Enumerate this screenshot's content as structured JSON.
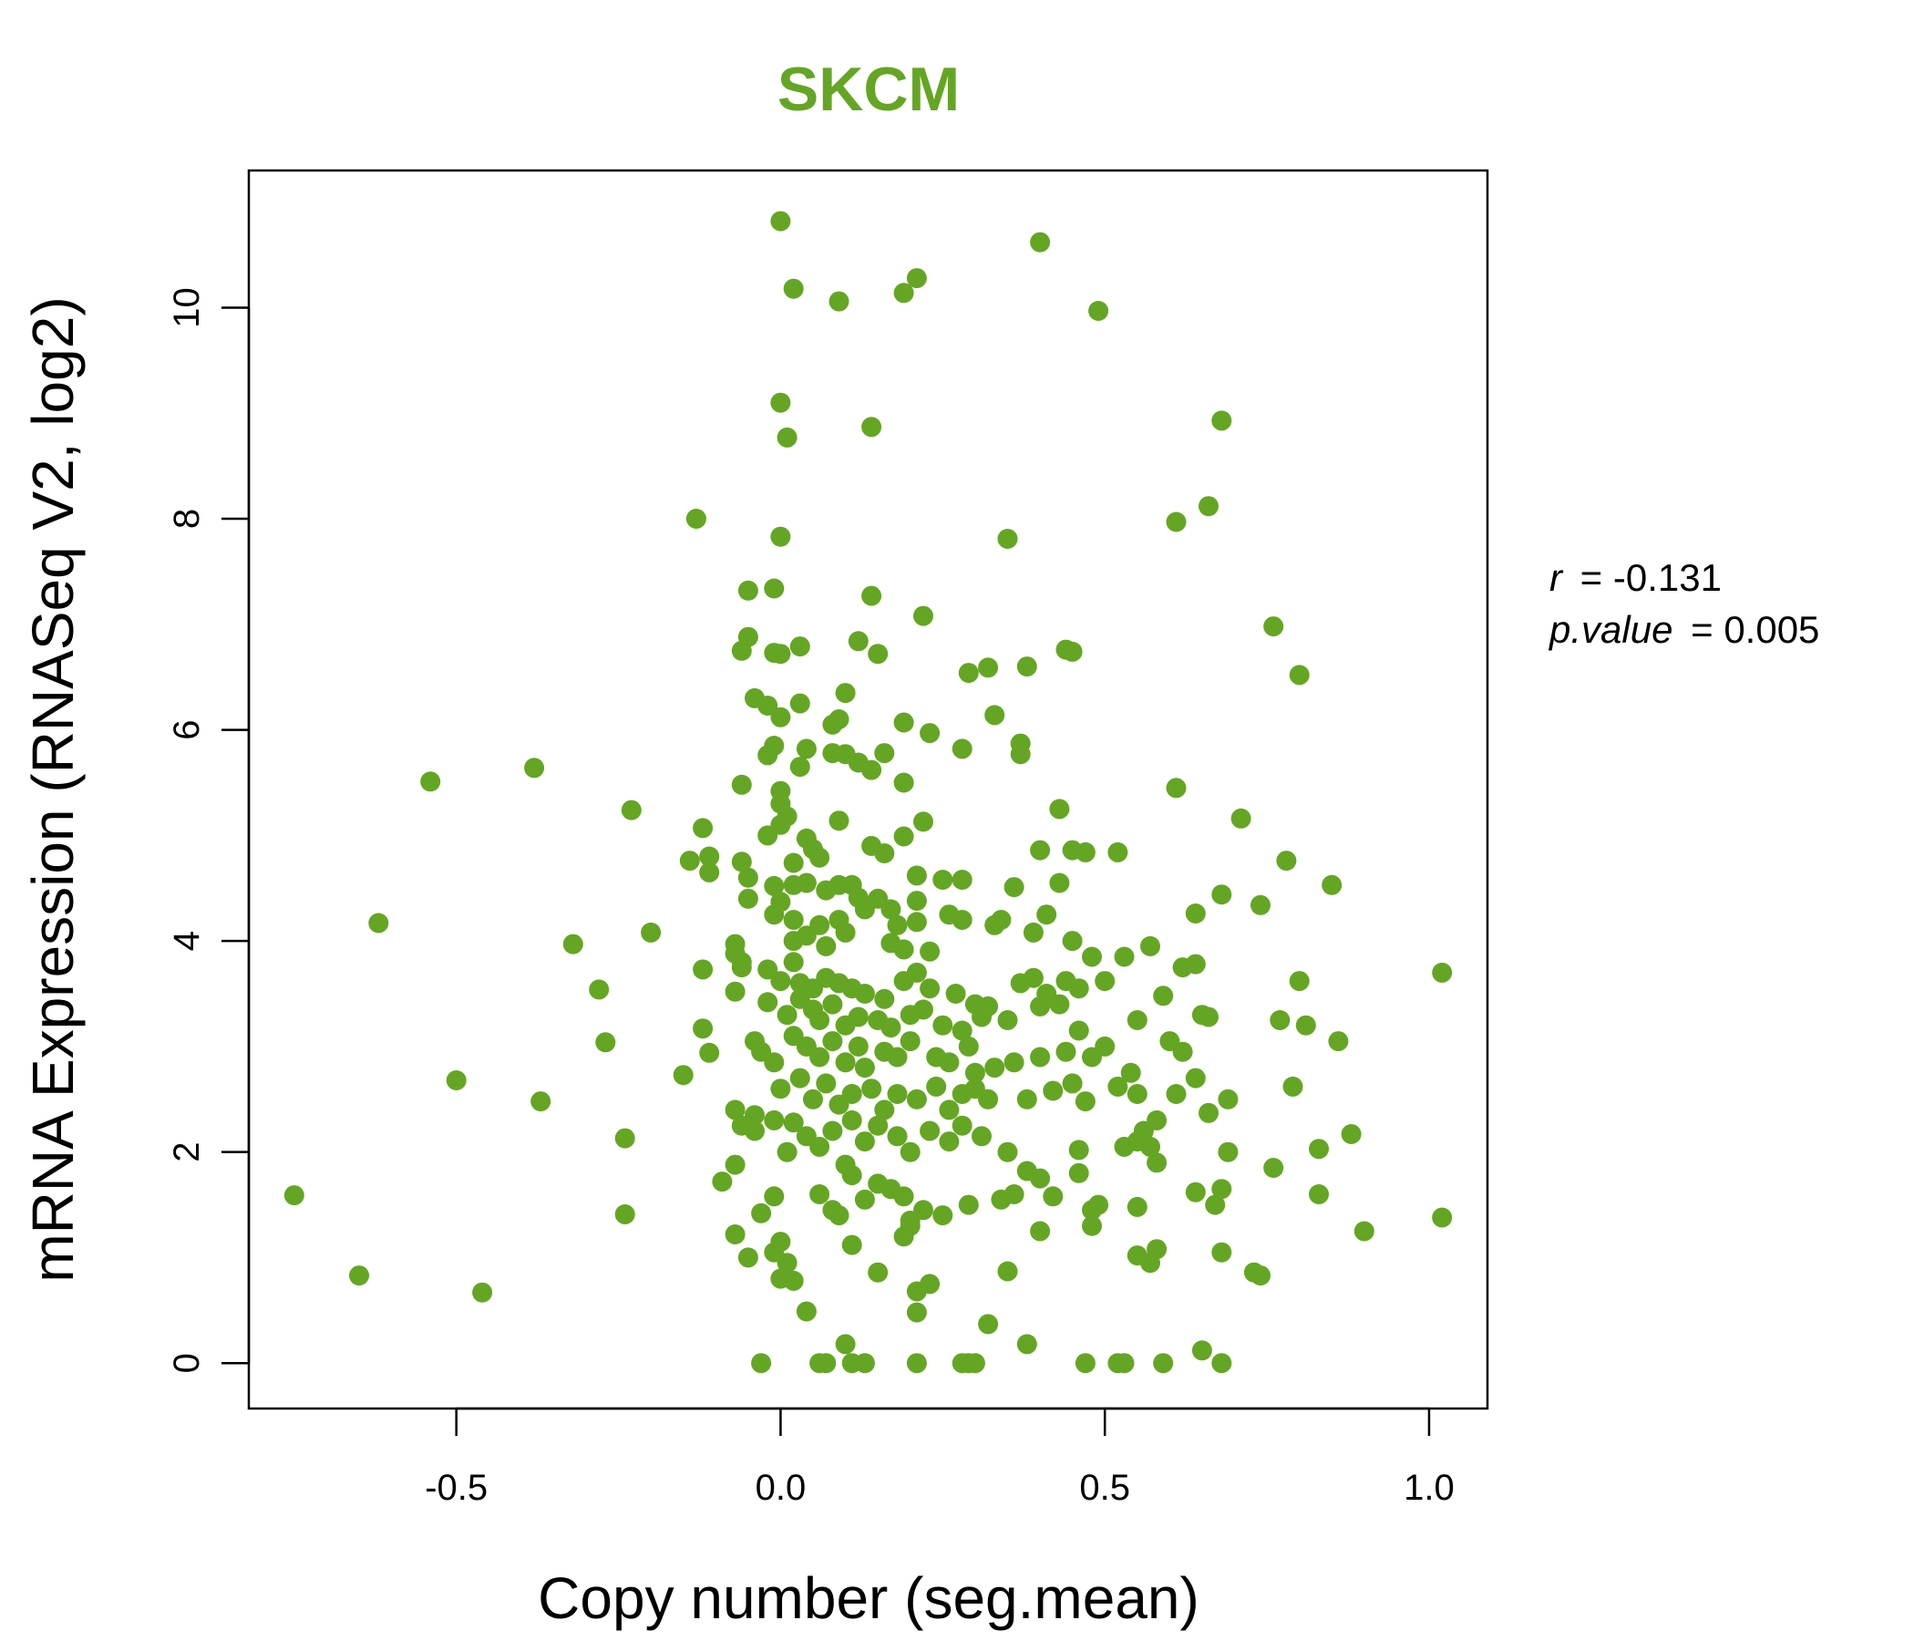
{
  "chart_data": {
    "type": "scatter",
    "title": "SKCM",
    "xlabel": "Copy number (seg.mean)",
    "ylabel": "mRNA Expression (RNASeq V2, log2)",
    "xlim": [
      -0.82,
      1.09
    ],
    "ylim": [
      -0.43,
      11.3
    ],
    "xticks": [
      -0.5,
      0.0,
      0.5,
      1.0
    ],
    "xtick_labels": [
      "-0.5",
      "0.0",
      "0.5",
      "1.0"
    ],
    "yticks": [
      0,
      2,
      4,
      6,
      8,
      10
    ],
    "ytick_labels": [
      "0",
      "2",
      "4",
      "6",
      "8",
      "10"
    ],
    "point_color": "#64a623",
    "grid": false,
    "stats": {
      "r_label": "r",
      "r_value": "-0.131",
      "p_label": "p.value",
      "p_value": "0.005"
    },
    "points": [
      [
        0.0,
        10.82
      ],
      [
        0.4,
        10.62
      ],
      [
        0.02,
        10.18
      ],
      [
        0.21,
        10.28
      ],
      [
        0.19,
        10.14
      ],
      [
        0.09,
        10.06
      ],
      [
        0.49,
        9.97
      ],
      [
        0.0,
        9.1
      ],
      [
        0.01,
        8.77
      ],
      [
        0.14,
        8.87
      ],
      [
        0.68,
        8.93
      ],
      [
        -0.13,
        8.0
      ],
      [
        0.0,
        7.83
      ],
      [
        0.35,
        7.81
      ],
      [
        0.61,
        7.97
      ],
      [
        0.66,
        8.12
      ],
      [
        -0.01,
        7.34
      ],
      [
        -0.05,
        7.32
      ],
      [
        0.14,
        7.27
      ],
      [
        0.22,
        7.08
      ],
      [
        0.76,
        6.98
      ],
      [
        -0.05,
        6.88
      ],
      [
        -0.06,
        6.75
      ],
      [
        -0.01,
        6.73
      ],
      [
        0.0,
        6.72
      ],
      [
        0.03,
        6.79
      ],
      [
        0.12,
        6.84
      ],
      [
        0.15,
        6.72
      ],
      [
        0.29,
        6.54
      ],
      [
        0.32,
        6.59
      ],
      [
        0.38,
        6.6
      ],
      [
        0.44,
        6.76
      ],
      [
        0.45,
        6.74
      ],
      [
        0.8,
        6.52
      ],
      [
        -0.04,
        6.3
      ],
      [
        -0.02,
        6.23
      ],
      [
        0.0,
        6.12
      ],
      [
        0.03,
        6.25
      ],
      [
        0.1,
        6.35
      ],
      [
        0.09,
        6.1
      ],
      [
        0.08,
        6.05
      ],
      [
        0.19,
        6.07
      ],
      [
        0.23,
        5.97
      ],
      [
        0.33,
        6.14
      ],
      [
        0.37,
        5.87
      ],
      [
        0.37,
        5.77
      ],
      [
        0.28,
        5.82
      ],
      [
        -0.01,
        5.85
      ],
      [
        -0.02,
        5.76
      ],
      [
        0.04,
        5.82
      ],
      [
        0.03,
        5.65
      ],
      [
        0.08,
        5.78
      ],
      [
        0.1,
        5.77
      ],
      [
        0.12,
        5.69
      ],
      [
        0.14,
        5.62
      ],
      [
        0.16,
        5.78
      ],
      [
        -0.54,
        5.51
      ],
      [
        -0.38,
        5.64
      ],
      [
        -0.06,
        5.48
      ],
      [
        0.0,
        5.42
      ],
      [
        0.0,
        5.3
      ],
      [
        0.01,
        5.18
      ],
      [
        0.0,
        5.1
      ],
      [
        0.19,
        5.5
      ],
      [
        0.61,
        5.45
      ],
      [
        -0.23,
        5.24
      ],
      [
        -0.12,
        5.07
      ],
      [
        0.09,
        5.14
      ],
      [
        0.22,
        5.13
      ],
      [
        0.43,
        5.25
      ],
      [
        0.71,
        5.16
      ],
      [
        -0.14,
        4.76
      ],
      [
        -0.11,
        4.8
      ],
      [
        -0.11,
        4.65
      ],
      [
        -0.06,
        4.75
      ],
      [
        -0.05,
        4.6
      ],
      [
        -0.02,
        5.0
      ],
      [
        0.04,
        4.97
      ],
      [
        0.05,
        4.87
      ],
      [
        0.02,
        4.74
      ],
      [
        0.06,
        4.79
      ],
      [
        0.14,
        4.9
      ],
      [
        0.16,
        4.83
      ],
      [
        0.19,
        4.99
      ],
      [
        0.4,
        4.86
      ],
      [
        0.45,
        4.86
      ],
      [
        0.47,
        4.84
      ],
      [
        0.52,
        4.84
      ],
      [
        0.78,
        4.76
      ],
      [
        -0.62,
        4.17
      ],
      [
        -0.32,
        3.97
      ],
      [
        -0.2,
        4.08
      ],
      [
        -0.05,
        4.4
      ],
      [
        -0.01,
        4.52
      ],
      [
        0.0,
        4.37
      ],
      [
        0.02,
        4.53
      ],
      [
        0.04,
        4.55
      ],
      [
        0.07,
        4.48
      ],
      [
        0.09,
        4.53
      ],
      [
        0.11,
        4.53
      ],
      [
        0.12,
        4.41
      ],
      [
        0.15,
        4.4
      ],
      [
        0.17,
        4.3
      ],
      [
        0.21,
        4.62
      ],
      [
        0.21,
        4.38
      ],
      [
        0.25,
        4.58
      ],
      [
        0.28,
        4.58
      ],
      [
        0.36,
        4.51
      ],
      [
        0.43,
        4.55
      ],
      [
        0.68,
        4.44
      ],
      [
        0.74,
        4.34
      ],
      [
        0.85,
        4.53
      ],
      [
        -0.07,
        3.97
      ],
      [
        -0.07,
        3.88
      ],
      [
        -0.06,
        3.8
      ],
      [
        -0.01,
        4.25
      ],
      [
        0.02,
        4.2
      ],
      [
        0.02,
        4.0
      ],
      [
        0.04,
        4.05
      ],
      [
        0.06,
        4.15
      ],
      [
        0.07,
        3.95
      ],
      [
        0.09,
        4.2
      ],
      [
        0.1,
        4.08
      ],
      [
        0.13,
        4.3
      ],
      [
        0.17,
        3.98
      ],
      [
        0.18,
        4.15
      ],
      [
        0.19,
        3.92
      ],
      [
        0.21,
        4.18
      ],
      [
        0.23,
        3.9
      ],
      [
        0.26,
        4.25
      ],
      [
        0.28,
        4.2
      ],
      [
        0.33,
        4.15
      ],
      [
        0.34,
        4.2
      ],
      [
        0.39,
        4.08
      ],
      [
        0.41,
        4.25
      ],
      [
        0.45,
        4.0
      ],
      [
        0.48,
        3.85
      ],
      [
        0.53,
        3.85
      ],
      [
        0.57,
        3.95
      ],
      [
        0.64,
        4.26
      ],
      [
        0.64,
        3.78
      ],
      [
        -0.12,
        3.73
      ],
      [
        -0.06,
        3.75
      ],
      [
        -0.02,
        3.73
      ],
      [
        0.0,
        3.62
      ],
      [
        0.02,
        3.8
      ],
      [
        0.03,
        3.6
      ],
      [
        0.05,
        3.55
      ],
      [
        0.07,
        3.65
      ],
      [
        0.09,
        3.6
      ],
      [
        0.11,
        3.55
      ],
      [
        0.13,
        3.5
      ],
      [
        0.16,
        3.45
      ],
      [
        0.19,
        3.62
      ],
      [
        0.21,
        3.7
      ],
      [
        0.23,
        3.55
      ],
      [
        0.27,
        3.5
      ],
      [
        0.3,
        3.4
      ],
      [
        0.32,
        3.38
      ],
      [
        0.37,
        3.6
      ],
      [
        0.39,
        3.65
      ],
      [
        0.41,
        3.5
      ],
      [
        0.44,
        3.62
      ],
      [
        0.46,
        3.55
      ],
      [
        0.5,
        3.62
      ],
      [
        0.59,
        3.48
      ],
      [
        0.62,
        3.75
      ],
      [
        0.8,
        3.62
      ],
      [
        1.02,
        3.7
      ],
      [
        -0.28,
        3.54
      ],
      [
        -0.07,
        3.52
      ],
      [
        -0.02,
        3.42
      ],
      [
        0.01,
        3.3
      ],
      [
        0.03,
        3.45
      ],
      [
        0.05,
        3.35
      ],
      [
        0.06,
        3.25
      ],
      [
        0.08,
        3.4
      ],
      [
        0.1,
        3.2
      ],
      [
        0.12,
        3.28
      ],
      [
        0.15,
        3.25
      ],
      [
        0.17,
        3.18
      ],
      [
        0.2,
        3.3
      ],
      [
        0.22,
        3.35
      ],
      [
        0.25,
        3.2
      ],
      [
        0.28,
        3.15
      ],
      [
        0.31,
        3.28
      ],
      [
        0.35,
        3.25
      ],
      [
        0.4,
        3.38
      ],
      [
        0.43,
        3.4
      ],
      [
        0.46,
        3.15
      ],
      [
        0.5,
        3.0
      ],
      [
        0.55,
        3.25
      ],
      [
        0.65,
        3.3
      ],
      [
        0.66,
        3.28
      ],
      [
        0.77,
        3.25
      ],
      [
        0.81,
        3.2
      ],
      [
        -0.27,
        3.04
      ],
      [
        -0.12,
        3.17
      ],
      [
        -0.11,
        2.94
      ],
      [
        -0.04,
        3.05
      ],
      [
        -0.03,
        2.95
      ],
      [
        -0.01,
        2.85
      ],
      [
        0.02,
        3.1
      ],
      [
        0.04,
        3.0
      ],
      [
        0.06,
        2.9
      ],
      [
        0.08,
        3.05
      ],
      [
        0.1,
        2.85
      ],
      [
        0.12,
        3.0
      ],
      [
        0.13,
        2.8
      ],
      [
        0.16,
        2.95
      ],
      [
        0.18,
        2.9
      ],
      [
        0.2,
        3.05
      ],
      [
        0.24,
        2.9
      ],
      [
        0.26,
        2.85
      ],
      [
        0.29,
        3.0
      ],
      [
        0.3,
        2.75
      ],
      [
        0.33,
        2.8
      ],
      [
        0.36,
        2.85
      ],
      [
        0.4,
        2.9
      ],
      [
        0.44,
        2.95
      ],
      [
        0.48,
        2.9
      ],
      [
        0.54,
        2.75
      ],
      [
        0.6,
        3.05
      ],
      [
        0.62,
        2.95
      ],
      [
        0.86,
        3.05
      ],
      [
        -0.5,
        2.68
      ],
      [
        -0.37,
        2.48
      ],
      [
        -0.15,
        2.73
      ],
      [
        -0.07,
        2.4
      ],
      [
        -0.04,
        2.35
      ],
      [
        0.0,
        2.6
      ],
      [
        0.03,
        2.7
      ],
      [
        0.05,
        2.5
      ],
      [
        0.07,
        2.65
      ],
      [
        0.09,
        2.45
      ],
      [
        0.11,
        2.55
      ],
      [
        0.14,
        2.6
      ],
      [
        0.16,
        2.4
      ],
      [
        0.18,
        2.55
      ],
      [
        0.21,
        2.5
      ],
      [
        0.24,
        2.62
      ],
      [
        0.26,
        2.4
      ],
      [
        0.28,
        2.55
      ],
      [
        0.3,
        2.6
      ],
      [
        0.32,
        2.5
      ],
      [
        0.38,
        2.5
      ],
      [
        0.42,
        2.58
      ],
      [
        0.45,
        2.65
      ],
      [
        0.47,
        2.48
      ],
      [
        0.52,
        2.62
      ],
      [
        0.55,
        2.55
      ],
      [
        0.61,
        2.55
      ],
      [
        0.64,
        2.7
      ],
      [
        0.66,
        2.37
      ],
      [
        0.69,
        2.5
      ],
      [
        0.79,
        2.62
      ],
      [
        -0.24,
        2.13
      ],
      [
        -0.06,
        2.25
      ],
      [
        -0.04,
        2.2
      ],
      [
        -0.01,
        2.3
      ],
      [
        0.02,
        2.28
      ],
      [
        0.04,
        2.15
      ],
      [
        0.06,
        2.05
      ],
      [
        0.08,
        2.2
      ],
      [
        0.11,
        2.3
      ],
      [
        0.13,
        2.1
      ],
      [
        0.15,
        2.25
      ],
      [
        0.18,
        2.15
      ],
      [
        0.2,
        2.0
      ],
      [
        0.23,
        2.2
      ],
      [
        0.26,
        2.1
      ],
      [
        0.28,
        2.25
      ],
      [
        0.31,
        2.15
      ],
      [
        0.35,
        2.0
      ],
      [
        0.46,
        2.02
      ],
      [
        0.53,
        2.05
      ],
      [
        0.55,
        2.1
      ],
      [
        0.56,
        2.2
      ],
      [
        0.57,
        2.05
      ],
      [
        0.58,
        2.3
      ],
      [
        0.69,
        2.0
      ],
      [
        0.83,
        2.03
      ],
      [
        0.88,
        2.17
      ],
      [
        -0.09,
        1.72
      ],
      [
        -0.07,
        1.88
      ],
      [
        -0.03,
        1.42
      ],
      [
        -0.01,
        1.58
      ],
      [
        0.01,
        2.0
      ],
      [
        0.06,
        1.6
      ],
      [
        0.08,
        1.45
      ],
      [
        0.1,
        1.88
      ],
      [
        0.11,
        1.78
      ],
      [
        0.13,
        1.55
      ],
      [
        0.15,
        1.7
      ],
      [
        0.17,
        1.65
      ],
      [
        0.19,
        1.58
      ],
      [
        0.2,
        1.3
      ],
      [
        0.22,
        1.45
      ],
      [
        0.25,
        1.4
      ],
      [
        0.29,
        1.5
      ],
      [
        0.34,
        1.55
      ],
      [
        0.36,
        1.6
      ],
      [
        0.38,
        1.82
      ],
      [
        0.4,
        1.75
      ],
      [
        0.42,
        1.58
      ],
      [
        0.46,
        1.8
      ],
      [
        0.48,
        1.45
      ],
      [
        0.49,
        1.5
      ],
      [
        0.55,
        1.48
      ],
      [
        0.58,
        1.9
      ],
      [
        0.64,
        1.62
      ],
      [
        0.67,
        1.5
      ],
      [
        0.68,
        1.65
      ],
      [
        0.76,
        1.85
      ],
      [
        0.83,
        1.6
      ],
      [
        1.02,
        1.38
      ],
      [
        -0.75,
        1.59
      ],
      [
        -0.65,
        0.83
      ],
      [
        -0.46,
        0.67
      ],
      [
        -0.24,
        1.41
      ],
      [
        -0.07,
        1.22
      ],
      [
        -0.05,
        1.0
      ],
      [
        0.0,
        1.15
      ],
      [
        -0.01,
        1.05
      ],
      [
        0.0,
        0.8
      ],
      [
        0.01,
        0.95
      ],
      [
        0.02,
        0.78
      ],
      [
        0.09,
        1.4
      ],
      [
        0.11,
        1.12
      ],
      [
        0.15,
        0.86
      ],
      [
        0.19,
        1.2
      ],
      [
        0.2,
        1.35
      ],
      [
        0.21,
        0.68
      ],
      [
        0.23,
        0.75
      ],
      [
        0.35,
        0.87
      ],
      [
        0.4,
        1.25
      ],
      [
        0.48,
        1.3
      ],
      [
        0.55,
        1.02
      ],
      [
        0.57,
        0.95
      ],
      [
        0.58,
        1.08
      ],
      [
        0.68,
        1.05
      ],
      [
        0.73,
        0.86
      ],
      [
        0.74,
        0.83
      ],
      [
        0.9,
        1.25
      ],
      [
        0.04,
        0.49
      ],
      [
        0.1,
        0.18
      ],
      [
        0.21,
        0.48
      ],
      [
        0.32,
        0.37
      ],
      [
        0.38,
        0.18
      ],
      [
        0.65,
        0.12
      ],
      [
        -0.03,
        0.0
      ],
      [
        0.06,
        0.0
      ],
      [
        0.07,
        0.0
      ],
      [
        0.11,
        0.0
      ],
      [
        0.13,
        0.0
      ],
      [
        0.21,
        0.0
      ],
      [
        0.28,
        0.0
      ],
      [
        0.29,
        0.0
      ],
      [
        0.3,
        0.0
      ],
      [
        0.47,
        0.0
      ],
      [
        0.52,
        0.0
      ],
      [
        0.53,
        0.0
      ],
      [
        0.59,
        0.0
      ],
      [
        0.68,
        0.0
      ]
    ]
  }
}
